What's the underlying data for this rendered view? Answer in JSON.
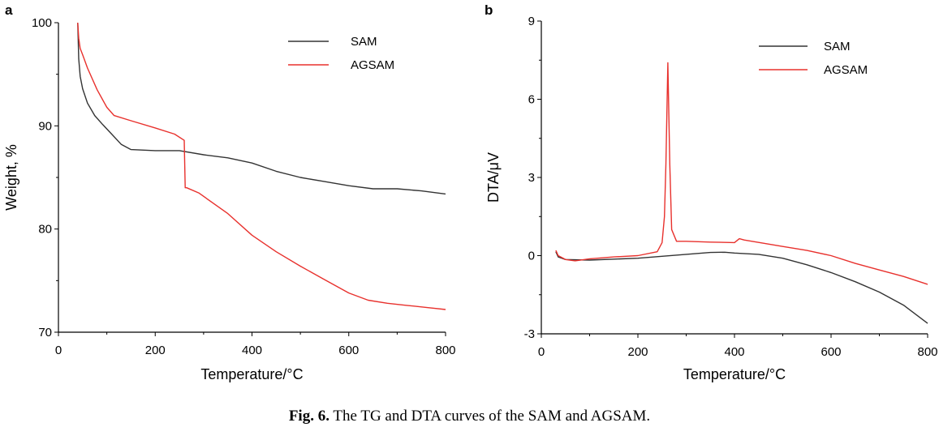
{
  "caption": {
    "label": "Fig. 6.",
    "text": "The TG and DTA curves of the SAM and AGSAM."
  },
  "colors": {
    "SAM": "#333333",
    "AGSAM": "#e8312d",
    "axis": "#000000"
  },
  "chart_data": [
    {
      "panel": "a",
      "type": "line",
      "xlabel": "Temperature/°C",
      "ylabel": "Weight, %",
      "xlim": [
        0,
        800
      ],
      "ylim": [
        70,
        100
      ],
      "xticks": [
        "0",
        "200",
        "400",
        "600",
        "800"
      ],
      "yticks": [
        "70",
        "80",
        "90",
        "100"
      ],
      "legend_position": "top-right",
      "series": [
        {
          "name": "SAM",
          "x": [
            40,
            42,
            45,
            50,
            60,
            75,
            90,
            110,
            130,
            150,
            200,
            250,
            300,
            350,
            400,
            450,
            500,
            550,
            600,
            650,
            700,
            750,
            800
          ],
          "y": [
            100,
            96.5,
            94.8,
            93.6,
            92.2,
            91,
            90.2,
            89.2,
            88.2,
            87.7,
            87.6,
            87.6,
            87.2,
            86.9,
            86.4,
            85.6,
            85,
            84.6,
            84.2,
            83.9,
            83.9,
            83.7,
            83.4
          ]
        },
        {
          "name": "AGSAM",
          "x": [
            40,
            42,
            45,
            50,
            60,
            80,
            100,
            115,
            150,
            200,
            240,
            260,
            262,
            265,
            290,
            350,
            400,
            450,
            500,
            550,
            600,
            640,
            680,
            720,
            760,
            800
          ],
          "y": [
            100,
            98.5,
            97.5,
            96.9,
            95.6,
            93.5,
            91.8,
            91,
            90.5,
            89.8,
            89.2,
            88.6,
            84,
            84,
            83.5,
            81.5,
            79.4,
            77.8,
            76.4,
            75.1,
            73.8,
            73.1,
            72.8,
            72.6,
            72.4,
            72.2
          ]
        }
      ]
    },
    {
      "panel": "b",
      "type": "line",
      "xlabel": "Temperature/°C",
      "ylabel": "DTA/μV",
      "xlim": [
        0,
        800
      ],
      "ylim": [
        -3,
        9
      ],
      "xticks": [
        "0",
        "200",
        "400",
        "600",
        "800"
      ],
      "yticks": [
        "-3",
        "0",
        "3",
        "6",
        "9"
      ],
      "legend_position": "top-right",
      "series": [
        {
          "name": "SAM",
          "x": [
            30,
            35,
            50,
            100,
            200,
            300,
            350,
            380,
            400,
            450,
            500,
            550,
            600,
            650,
            700,
            750,
            800
          ],
          "y": [
            0.15,
            -0.05,
            -0.15,
            -0.17,
            -0.1,
            0.05,
            0.12,
            0.13,
            0.1,
            0.05,
            -0.1,
            -0.35,
            -0.65,
            -1.0,
            -1.4,
            -1.9,
            -2.6
          ]
        },
        {
          "name": "AGSAM",
          "x": [
            30,
            35,
            50,
            70,
            100,
            150,
            200,
            240,
            250,
            255,
            258,
            262,
            266,
            270,
            280,
            300,
            350,
            400,
            410,
            420,
            500,
            550,
            600,
            650,
            700,
            750,
            800
          ],
          "y": [
            0.2,
            0.0,
            -0.15,
            -0.2,
            -0.12,
            -0.05,
            0.0,
            0.15,
            0.5,
            1.5,
            3.5,
            7.4,
            3.5,
            1.0,
            0.55,
            0.55,
            0.52,
            0.5,
            0.65,
            0.6,
            0.35,
            0.2,
            0.0,
            -0.3,
            -0.55,
            -0.8,
            -1.1
          ]
        }
      ]
    }
  ]
}
